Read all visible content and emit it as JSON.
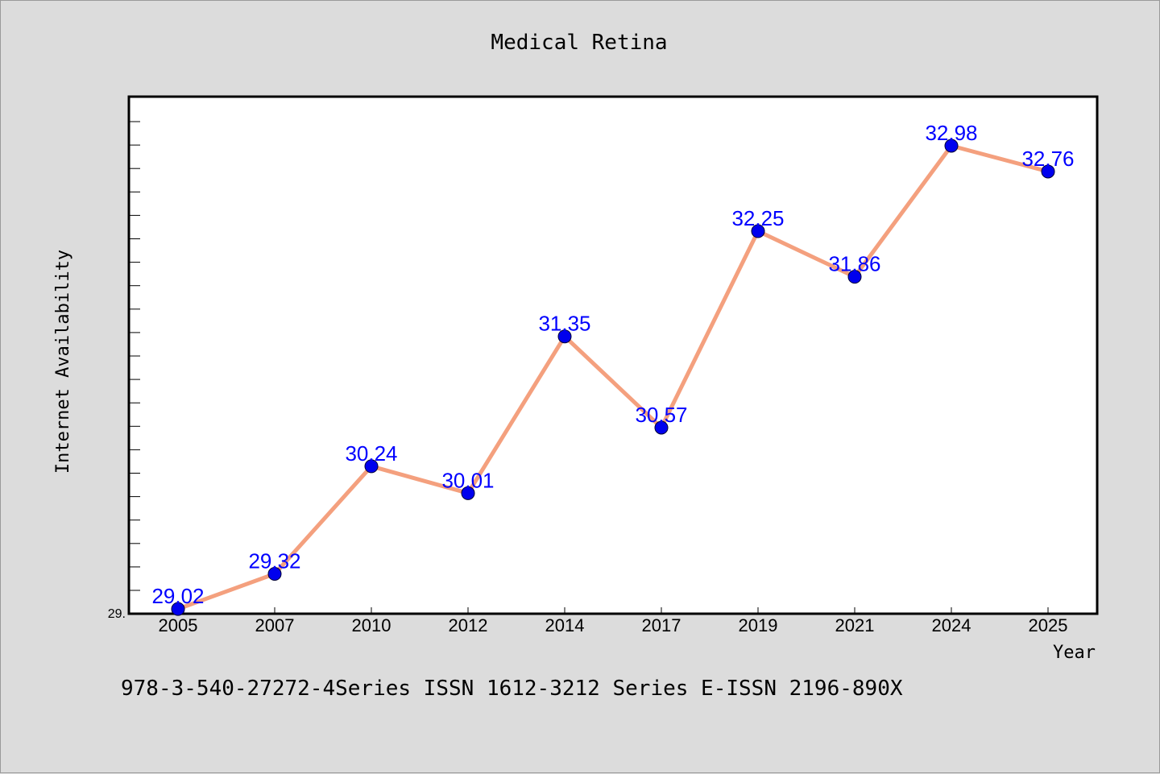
{
  "chart_data": {
    "type": "line",
    "title": "Medical Retina",
    "xlabel": "Year",
    "ylabel": "Internet Availability",
    "categories": [
      "2005",
      "2007",
      "2010",
      "2012",
      "2014",
      "2017",
      "2019",
      "2021",
      "2024",
      "2025"
    ],
    "series": [
      {
        "values": [
          29.02,
          29.32,
          30.24,
          30.01,
          31.35,
          30.57,
          32.25,
          31.86,
          32.98,
          32.76
        ],
        "labels": [
          "29.02",
          "29.32",
          "30.24",
          "30.01",
          "31.35",
          "30.57",
          "32.25",
          "31.86",
          "32.98",
          "32.76"
        ],
        "line_color": "#f4a07e",
        "marker_color": "#0000ee"
      }
    ],
    "ylim": [
      29.0,
      33.4
    ],
    "y_tick_labels": [
      "29."
    ],
    "grid": false,
    "legend": "none"
  },
  "footer": {
    "text": "978-3-540-27272-4Series ISSN 1612-3212 Series E-ISSN 2196-890X"
  },
  "colors": {
    "background": "#dcdcdc",
    "plot_background": "#ffffff",
    "label_color": "#0000ff"
  }
}
